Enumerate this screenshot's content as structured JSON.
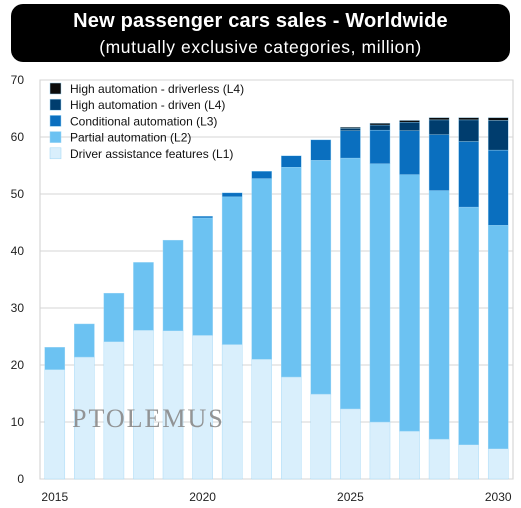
{
  "header": {
    "title": "New passenger cars sales - Worldwide",
    "subtitle": "(mutually exclusive categories, million)"
  },
  "watermark": "PTOLEMUS",
  "chart_data": {
    "type": "bar",
    "stacked": true,
    "title": "New passenger cars sales - Worldwide",
    "subtitle": "(mutually exclusive categories, million)",
    "xlabel": "",
    "ylabel": "",
    "ylim": [
      0,
      70
    ],
    "yticks": [
      0,
      10,
      20,
      30,
      40,
      50,
      60,
      70
    ],
    "grid": "horizontal",
    "legend_position": "top-left",
    "categories": [
      2015,
      2016,
      2017,
      2018,
      2019,
      2020,
      2021,
      2022,
      2023,
      2024,
      2025,
      2026,
      2027,
      2028,
      2029,
      2030
    ],
    "x_tick_labels": [
      "2015",
      "2020",
      "2025",
      "2030"
    ],
    "series": [
      {
        "name": "Driver assistance features (L1)",
        "color": "#d9effc",
        "values": [
          19.2,
          21.4,
          24.1,
          26.1,
          26.0,
          25.2,
          23.6,
          21.0,
          17.9,
          14.9,
          12.3,
          10.0,
          8.4,
          7.0,
          6.0,
          5.3
        ]
      },
      {
        "name": "Partial automation (L2)",
        "color": "#6cc2f2",
        "values": [
          3.9,
          5.8,
          8.5,
          11.9,
          15.9,
          20.6,
          25.9,
          31.7,
          36.8,
          41.0,
          44.0,
          45.3,
          45.0,
          43.6,
          41.7,
          39.2
        ]
      },
      {
        "name": "Conditional automation (L3)",
        "color": "#0a6fbf",
        "values": [
          0,
          0,
          0,
          0,
          0,
          0.3,
          0.7,
          1.3,
          2.0,
          3.6,
          4.8,
          5.9,
          7.7,
          9.8,
          11.5,
          13.2
        ]
      },
      {
        "name": "High automation - driven (L4)",
        "color": "#003d6e",
        "values": [
          0,
          0,
          0,
          0,
          0,
          0,
          0,
          0,
          0,
          0,
          0.4,
          0.9,
          1.5,
          2.6,
          3.8,
          5.2
        ]
      },
      {
        "name": "High automation - driverless (L4)",
        "color": "#0b0b0b",
        "values": [
          0,
          0,
          0,
          0,
          0,
          0,
          0,
          0,
          0,
          0,
          0.2,
          0.3,
          0.3,
          0.4,
          0.4,
          0.5
        ]
      }
    ]
  }
}
